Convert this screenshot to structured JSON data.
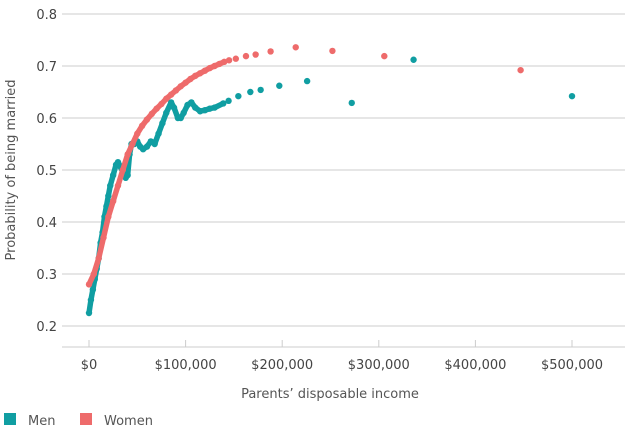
{
  "chart_data": {
    "type": "scatter",
    "title": "",
    "xlabel": "Parents’ disposable income",
    "ylabel": "Probability of being married",
    "xlim": [
      -10000,
      555000
    ],
    "ylim": [
      0.2,
      0.8
    ],
    "grid": true,
    "legend_placement": "bottom-left",
    "x_ticks": [
      {
        "value": 0,
        "label": "$0"
      },
      {
        "value": 100000,
        "label": "$100,000"
      },
      {
        "value": 200000,
        "label": "$200,000"
      },
      {
        "value": 300000,
        "label": "$300,000"
      },
      {
        "value": 400000,
        "label": "$400,000"
      },
      {
        "value": 500000,
        "label": "$500,000"
      }
    ],
    "y_ticks": [
      {
        "value": 0.2,
        "label": "0.2"
      },
      {
        "value": 0.3,
        "label": "0.3"
      },
      {
        "value": 0.4,
        "label": "0.4"
      },
      {
        "value": 0.5,
        "label": "0.5"
      },
      {
        "value": 0.6,
        "label": "0.6"
      },
      {
        "value": 0.7,
        "label": "0.7"
      },
      {
        "value": 0.8,
        "label": "0.8"
      }
    ],
    "series": [
      {
        "name": "Men",
        "color": "#109ea2",
        "points": [
          [
            0,
            0.225
          ],
          [
            2000,
            0.25
          ],
          [
            4000,
            0.27
          ],
          [
            6000,
            0.29
          ],
          [
            8000,
            0.31
          ],
          [
            10000,
            0.33
          ],
          [
            12000,
            0.36
          ],
          [
            14000,
            0.38
          ],
          [
            16000,
            0.41
          ],
          [
            18000,
            0.43
          ],
          [
            20000,
            0.45
          ],
          [
            22000,
            0.47
          ],
          [
            25000,
            0.49
          ],
          [
            28000,
            0.51
          ],
          [
            30000,
            0.515
          ],
          [
            33000,
            0.505
          ],
          [
            36000,
            0.49
          ],
          [
            38000,
            0.485
          ],
          [
            40000,
            0.49
          ],
          [
            42000,
            0.53
          ],
          [
            44000,
            0.55
          ],
          [
            47000,
            0.55
          ],
          [
            50000,
            0.555
          ],
          [
            53000,
            0.545
          ],
          [
            56000,
            0.54
          ],
          [
            60000,
            0.545
          ],
          [
            64000,
            0.555
          ],
          [
            68000,
            0.55
          ],
          [
            72000,
            0.57
          ],
          [
            76000,
            0.59
          ],
          [
            80000,
            0.61
          ],
          [
            85000,
            0.63
          ],
          [
            88000,
            0.62
          ],
          [
            92000,
            0.6
          ],
          [
            95000,
            0.6
          ],
          [
            98000,
            0.61
          ],
          [
            102000,
            0.625
          ],
          [
            106000,
            0.63
          ],
          [
            110000,
            0.62
          ],
          [
            115000,
            0.613
          ],
          [
            120000,
            0.615
          ],
          [
            125000,
            0.618
          ],
          [
            130000,
            0.62
          ],
          [
            139000,
            0.628
          ],
          [
            144500,
            0.633
          ],
          [
            154600,
            0.642
          ],
          [
            167000,
            0.65
          ],
          [
            177700,
            0.654
          ],
          [
            197000,
            0.662
          ],
          [
            225800,
            0.671
          ],
          [
            272000,
            0.629
          ],
          [
            336000,
            0.712
          ],
          [
            500000,
            0.642
          ]
        ]
      },
      {
        "name": "Women",
        "color": "#ee6b6b",
        "points": [
          [
            0,
            0.28
          ],
          [
            5000,
            0.3
          ],
          [
            10000,
            0.33
          ],
          [
            15000,
            0.37
          ],
          [
            20000,
            0.41
          ],
          [
            25000,
            0.44
          ],
          [
            30000,
            0.47
          ],
          [
            35000,
            0.5
          ],
          [
            40000,
            0.53
          ],
          [
            45000,
            0.55
          ],
          [
            50000,
            0.57
          ],
          [
            55000,
            0.585
          ],
          [
            60000,
            0.597
          ],
          [
            65000,
            0.608
          ],
          [
            70000,
            0.618
          ],
          [
            75000,
            0.627
          ],
          [
            80000,
            0.637
          ],
          [
            85000,
            0.645
          ],
          [
            90000,
            0.653
          ],
          [
            95000,
            0.661
          ],
          [
            100000,
            0.668
          ],
          [
            105000,
            0.675
          ],
          [
            110000,
            0.681
          ],
          [
            115000,
            0.686
          ],
          [
            120000,
            0.691
          ],
          [
            125000,
            0.696
          ],
          [
            130000,
            0.7
          ],
          [
            135000,
            0.704
          ],
          [
            140000,
            0.708
          ],
          [
            145000,
            0.711
          ],
          [
            152000,
            0.714
          ],
          [
            162500,
            0.719
          ],
          [
            172500,
            0.722
          ],
          [
            188000,
            0.728
          ],
          [
            214000,
            0.736
          ],
          [
            252000,
            0.729
          ],
          [
            305700,
            0.719
          ],
          [
            446800,
            0.692
          ]
        ]
      }
    ]
  }
}
